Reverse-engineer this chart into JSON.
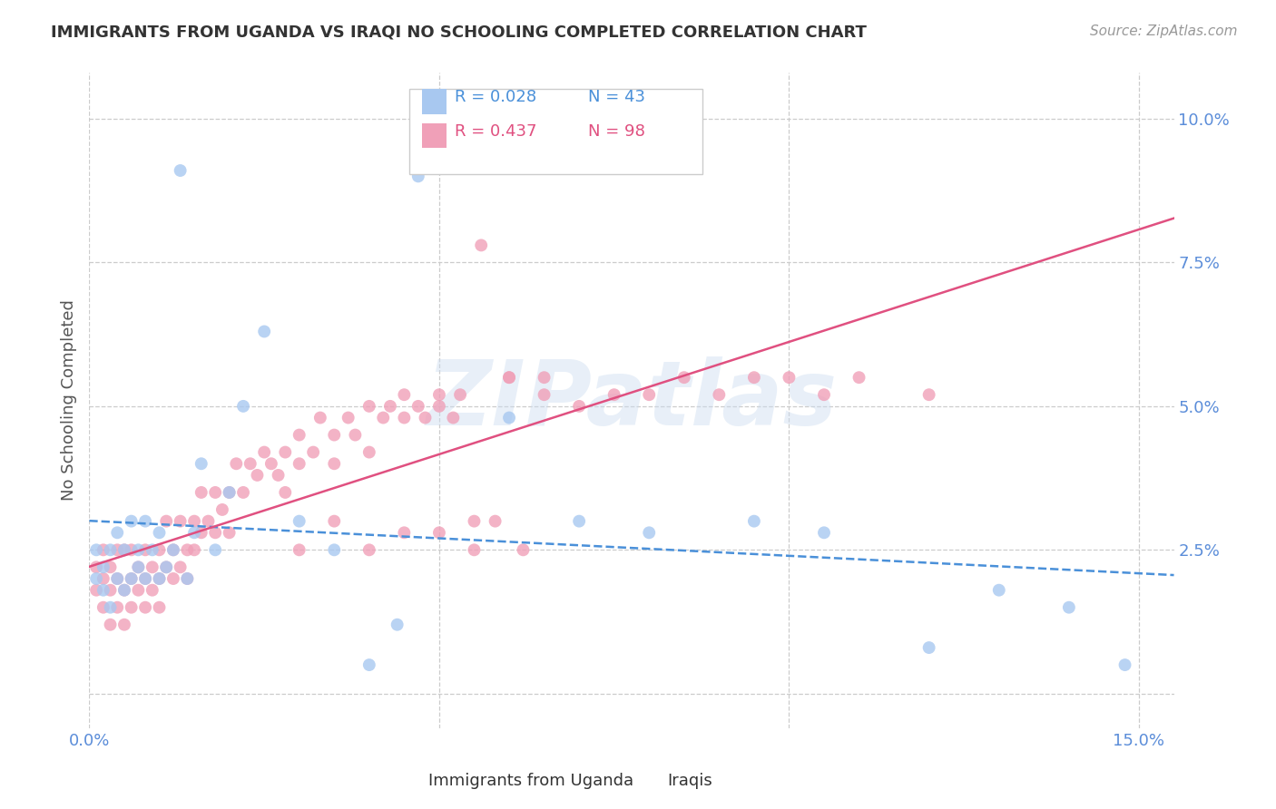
{
  "title": "IMMIGRANTS FROM UGANDA VS IRAQI NO SCHOOLING COMPLETED CORRELATION CHART",
  "source": "Source: ZipAtlas.com",
  "ylabel": "No Schooling Completed",
  "xlim": [
    0.0,
    0.155
  ],
  "ylim": [
    -0.006,
    0.108
  ],
  "xtick_vals": [
    0.0,
    0.05,
    0.1,
    0.15
  ],
  "xtick_labels": [
    "0.0%",
    "",
    "",
    "15.0%"
  ],
  "ytick_vals": [
    0.0,
    0.025,
    0.05,
    0.075,
    0.1
  ],
  "ytick_labels": [
    "",
    "2.5%",
    "5.0%",
    "7.5%",
    "10.0%"
  ],
  "legend_r1": "R = 0.028",
  "legend_n1": "N = 43",
  "legend_r2": "R = 0.437",
  "legend_n2": "N = 98",
  "legend_label1": "Immigrants from Uganda",
  "legend_label2": "Iraqis",
  "color_uganda": "#a8c8f0",
  "color_iraq": "#f0a0b8",
  "color_line_uganda": "#4a90d9",
  "color_line_iraq": "#e05080",
  "color_tick": "#5b8dd9",
  "background": "#ffffff",
  "watermark": "ZIPatlas",
  "title_color": "#333333",
  "source_color": "#999999",
  "ylabel_color": "#555555",
  "grid_color": "#cccccc",
  "legend_edge_color": "#cccccc"
}
